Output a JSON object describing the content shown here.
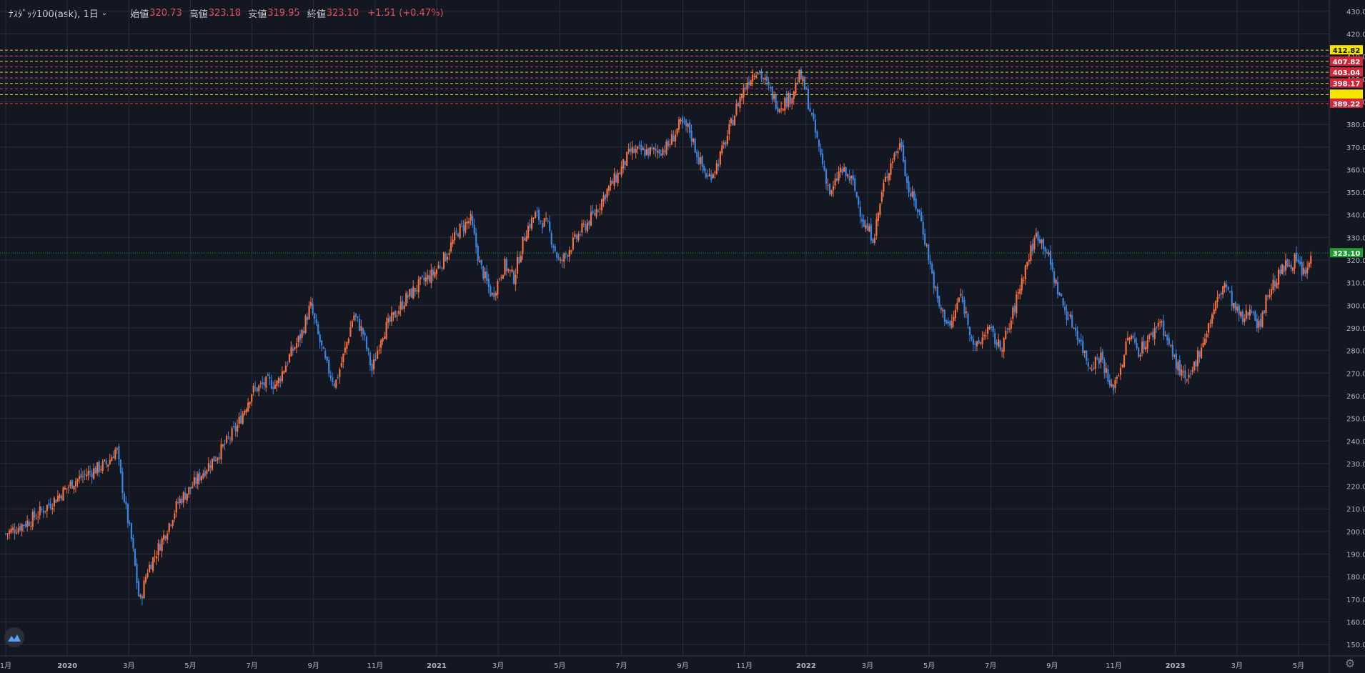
{
  "header": {
    "symbol": "ﾅｽﾀﾞｯｸ100(ask), 1日",
    "open_label": "始値",
    "open": "320.73",
    "high_label": "高値",
    "high": "323.18",
    "low_label": "安値",
    "low": "319.95",
    "close_label": "終値",
    "close": "323.10",
    "change": "+1.51 (+0.47%)"
  },
  "colors": {
    "background": "#131722",
    "grid": "#2a2e39",
    "up": "#f7703e",
    "down": "#3b84e0",
    "axis_text": "#b2b5be",
    "line_yellow": "#e3d21f",
    "line_red": "#e0414f",
    "label_red": "#d62738",
    "label_yellow": "#f5e400",
    "label_green": "#1c9e30"
  },
  "icons": {
    "logo": "tradingview-logo-icon",
    "settings": "gear-icon"
  },
  "chart_data": {
    "type": "candlestick",
    "title": "",
    "ylim": [
      145,
      435
    ],
    "y_ticks": [
      150,
      160,
      170,
      180,
      190,
      200,
      210,
      220,
      230,
      240,
      250,
      260,
      270,
      280,
      290,
      300,
      310,
      320,
      330,
      340,
      350,
      360,
      370,
      380,
      390,
      400,
      410,
      420,
      430
    ],
    "y_tick_labels": [
      "150.00",
      "160.00",
      "170.00",
      "180.00",
      "190.00",
      "200.00",
      "210.00",
      "220.00",
      "230.00",
      "240.00",
      "250.00",
      "260.00",
      "270.00",
      "280.00",
      "290.00",
      "300.00",
      "310.00",
      "320.00",
      "330.00",
      "340.00",
      "350.00",
      "360.00",
      "370.00",
      "380.00",
      "390.00",
      "400.00",
      "410.00",
      "420.00",
      "430.00"
    ],
    "x_labels": [
      "1月",
      "2020",
      "3月",
      "5月",
      "7月",
      "9月",
      "11月",
      "2021",
      "3月",
      "5月",
      "7月",
      "9月",
      "11月",
      "2022",
      "3月",
      "5月",
      "7月",
      "9月",
      "11月",
      "2023",
      "3月",
      "5月"
    ],
    "x_label_pos": [
      0.0,
      2.0,
      4.0,
      6.0,
      8.0,
      10.0,
      12.0,
      14.0,
      16.0,
      18.0,
      20.0,
      22.0,
      24.0,
      26.0,
      28.0,
      30.0,
      32.0,
      34.0,
      36.0,
      38.0,
      40.0,
      42.0
    ],
    "price_path": [
      [
        0,
        199
      ],
      [
        0.8,
        205
      ],
      [
        1.5,
        213
      ],
      [
        2.2,
        222
      ],
      [
        2.7,
        226
      ],
      [
        3.3,
        230
      ],
      [
        3.6,
        237
      ],
      [
        3.7,
        227
      ],
      [
        3.9,
        210
      ],
      [
        4.1,
        195
      ],
      [
        4.35,
        168
      ],
      [
        4.6,
        183
      ],
      [
        4.9,
        191
      ],
      [
        5.2,
        200
      ],
      [
        5.6,
        213
      ],
      [
        6.0,
        219
      ],
      [
        6.5,
        228
      ],
      [
        7.0,
        236
      ],
      [
        7.5,
        246
      ],
      [
        8.0,
        262
      ],
      [
        8.5,
        266
      ],
      [
        8.8,
        265
      ],
      [
        9.2,
        277
      ],
      [
        9.6,
        287
      ],
      [
        9.9,
        300
      ],
      [
        10.1,
        289
      ],
      [
        10.4,
        274
      ],
      [
        10.7,
        265
      ],
      [
        11.0,
        279
      ],
      [
        11.3,
        296
      ],
      [
        11.6,
        288
      ],
      [
        11.9,
        271
      ],
      [
        12.2,
        287
      ],
      [
        12.6,
        295
      ],
      [
        13.0,
        303
      ],
      [
        13.5,
        310
      ],
      [
        13.9,
        314
      ],
      [
        14.3,
        322
      ],
      [
        14.7,
        333
      ],
      [
        15.1,
        338
      ],
      [
        15.4,
        318
      ],
      [
        15.8,
        304
      ],
      [
        16.2,
        318
      ],
      [
        16.5,
        312
      ],
      [
        16.9,
        333
      ],
      [
        17.2,
        340
      ],
      [
        17.6,
        335
      ],
      [
        18.0,
        318
      ],
      [
        18.3,
        325
      ],
      [
        18.7,
        333
      ],
      [
        19.1,
        340
      ],
      [
        19.5,
        350
      ],
      [
        19.9,
        358
      ],
      [
        20.3,
        368
      ],
      [
        20.7,
        368
      ],
      [
        21.1,
        368
      ],
      [
        21.5,
        370
      ],
      [
        21.9,
        380
      ],
      [
        22.2,
        378
      ],
      [
        22.5,
        365
      ],
      [
        22.8,
        356
      ],
      [
        23.1,
        362
      ],
      [
        23.4,
        373
      ],
      [
        23.8,
        390
      ],
      [
        24.1,
        399
      ],
      [
        24.4,
        405
      ],
      [
        24.7,
        398
      ],
      [
        25.1,
        388
      ],
      [
        25.5,
        392
      ],
      [
        25.8,
        402
      ],
      [
        26.0,
        394
      ],
      [
        26.2,
        382
      ],
      [
        26.5,
        365
      ],
      [
        26.8,
        348
      ],
      [
        27.1,
        360
      ],
      [
        27.5,
        355
      ],
      [
        27.9,
        335
      ],
      [
        28.2,
        330
      ],
      [
        28.5,
        352
      ],
      [
        28.8,
        365
      ],
      [
        29.1,
        372
      ],
      [
        29.3,
        352
      ],
      [
        29.7,
        340
      ],
      [
        30.0,
        320
      ],
      [
        30.3,
        300
      ],
      [
        30.7,
        290
      ],
      [
        31.0,
        305
      ],
      [
        31.2,
        296
      ],
      [
        31.5,
        280
      ],
      [
        31.9,
        290
      ],
      [
        32.3,
        281
      ],
      [
        32.6,
        290
      ],
      [
        32.9,
        306
      ],
      [
        33.2,
        320
      ],
      [
        33.5,
        332
      ],
      [
        33.8,
        325
      ],
      [
        34.1,
        310
      ],
      [
        34.4,
        298
      ],
      [
        34.8,
        288
      ],
      [
        35.2,
        273
      ],
      [
        35.6,
        278
      ],
      [
        35.9,
        262
      ],
      [
        36.2,
        272
      ],
      [
        36.5,
        287
      ],
      [
        36.8,
        280
      ],
      [
        37.2,
        286
      ],
      [
        37.5,
        294
      ],
      [
        37.8,
        282
      ],
      [
        38.1,
        272
      ],
      [
        38.4,
        265
      ],
      [
        38.7,
        277
      ],
      [
        39.0,
        288
      ],
      [
        39.3,
        300
      ],
      [
        39.6,
        310
      ],
      [
        39.9,
        299
      ],
      [
        40.2,
        293
      ],
      [
        40.5,
        300
      ],
      [
        40.7,
        290
      ],
      [
        41.0,
        305
      ],
      [
        41.3,
        312
      ],
      [
        41.6,
        318
      ],
      [
        41.9,
        320
      ],
      [
        42.2,
        313
      ],
      [
        42.4,
        321
      ]
    ],
    "up_color": "#f7703e",
    "down_color": "#3b84e0",
    "horizontal_levels": [
      {
        "value": 412.82,
        "line_color": "#e3d21f",
        "label": "412.82",
        "label_bg": "#f5e400",
        "label_fg": "#131722"
      },
      {
        "value": 410.3,
        "line_color": "#e0414f"
      },
      {
        "value": 407.82,
        "line_color": "#e3d21f",
        "label": "407.82",
        "label_bg": "#d62738",
        "label_fg": "#ffffff"
      },
      {
        "value": 405.4,
        "line_color": "#e0414f"
      },
      {
        "value": 403.04,
        "line_color": "#e3d21f",
        "label": "403.04",
        "label_bg": "#d62738",
        "label_fg": "#ffffff"
      },
      {
        "value": 400.6,
        "line_color": "#e0414f"
      },
      {
        "value": 398.17,
        "line_color": "#e3d21f",
        "label": "398.17",
        "label_bg": "#d62738",
        "label_fg": "#ffffff"
      },
      {
        "value": 395.7,
        "line_color": "#e0414f"
      },
      {
        "value": 393.2,
        "line_color": "#e3d21f",
        "label_bg": "#f5e400"
      },
      {
        "value": 389.22,
        "line_color": "#e0414f",
        "label": "389.22",
        "label_bg": "#d62738",
        "label_fg": "#ffffff"
      }
    ],
    "last_price": {
      "value": 323.1,
      "label": "323.10",
      "color": "#1c9e30"
    }
  }
}
